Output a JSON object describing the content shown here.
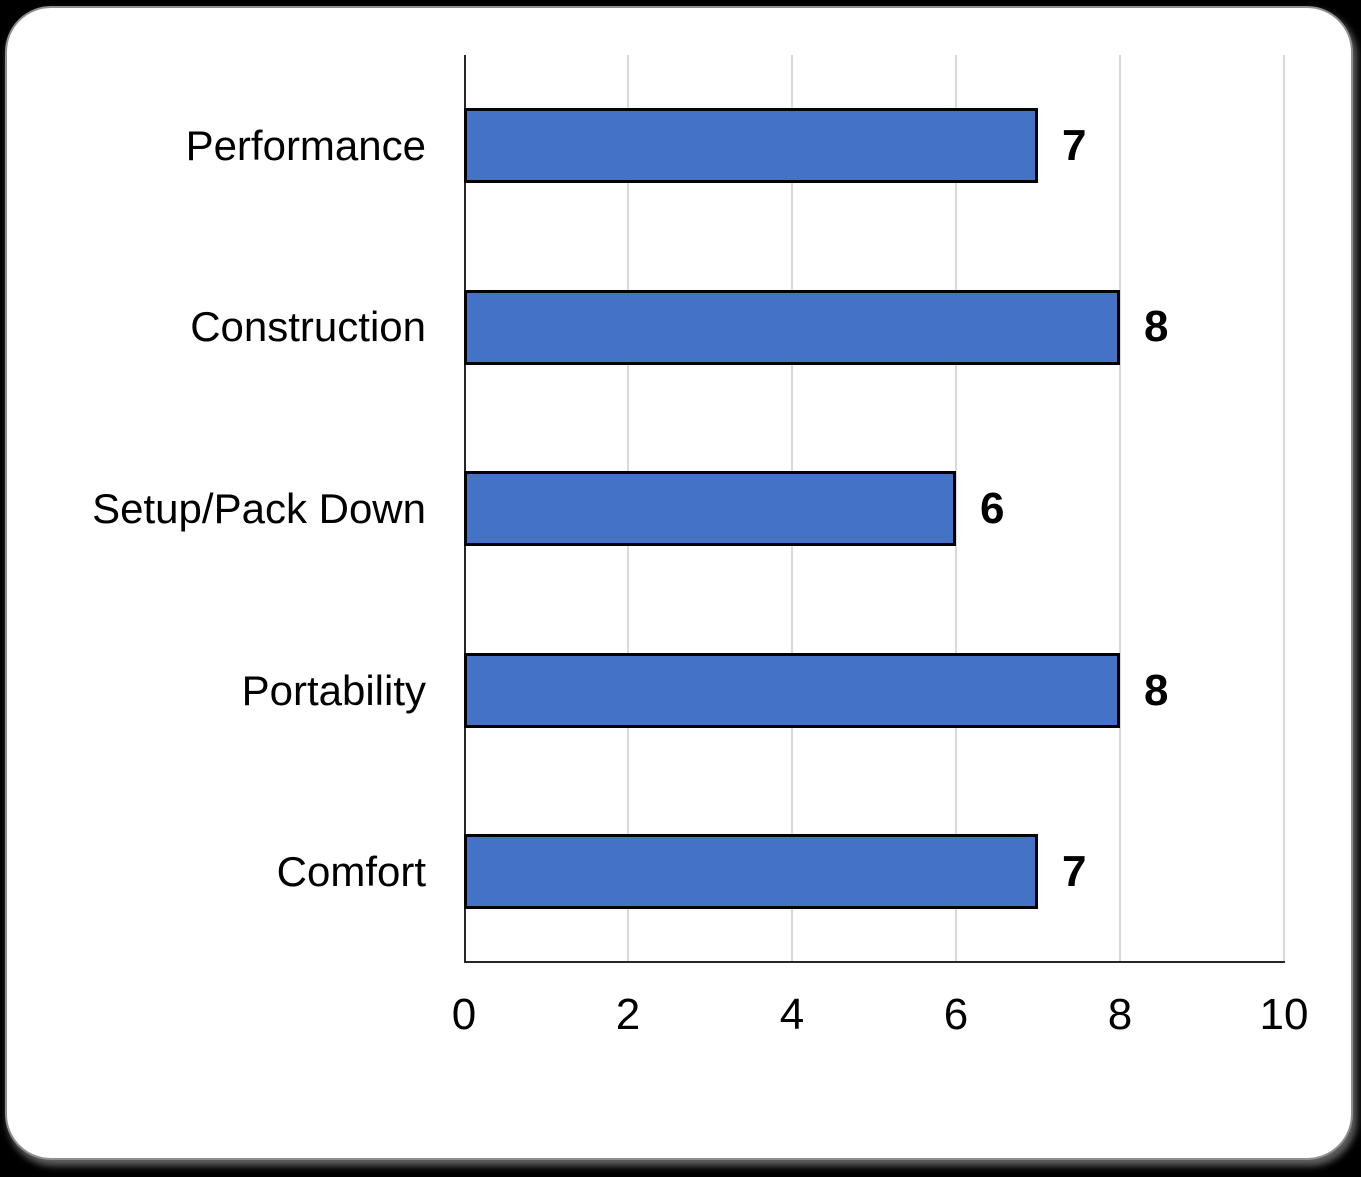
{
  "canvas": {
    "background_color": "#000000",
    "card_background_color": "#FFFFFF",
    "card_border_color": "#8F8F8F"
  },
  "chart_data": {
    "type": "bar",
    "orientation": "horizontal",
    "title": "",
    "categories": [
      "Performance",
      "Construction",
      "Setup/Pack Down",
      "Portability",
      "Comfort"
    ],
    "values": [
      7,
      8,
      6,
      8,
      7
    ],
    "value_labels": [
      "7",
      "8",
      "6",
      "8",
      "7"
    ],
    "xlabel": "",
    "ylabel": "",
    "xlim": [
      0,
      10
    ],
    "x_ticks": [
      0,
      2,
      4,
      6,
      8,
      10
    ],
    "x_tick_labels": [
      "0",
      "2",
      "4",
      "6",
      "8",
      "10"
    ],
    "grid": true,
    "legend": false,
    "styles": {
      "bar_fill_color": "#4472C4",
      "bar_border_color": "#000000",
      "gridline_color": "#D9D9D9",
      "axis_line_color": "#262626",
      "text_color": "#000000"
    }
  }
}
